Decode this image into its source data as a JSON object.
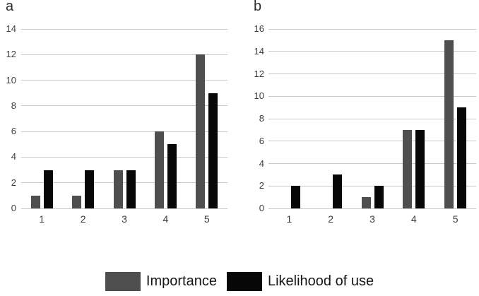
{
  "colors": {
    "importance": "#4f4f4f",
    "likelihood": "#070707",
    "gridline": "#c9c9c9",
    "tick_label": "#3c3c3c",
    "background": "#ffffff"
  },
  "legend": {
    "items": [
      {
        "label": "Importance",
        "color": "#4f4f4f",
        "series_key": "importance"
      },
      {
        "label": "Likelihood of use",
        "color": "#070707",
        "series_key": "likelihood"
      }
    ]
  },
  "chart_data": [
    {
      "type": "bar",
      "panel_label": "a",
      "title": "",
      "xlabel": "",
      "ylabel": "",
      "categories": [
        "1",
        "2",
        "3",
        "4",
        "5"
      ],
      "series": [
        {
          "name": "Importance",
          "color": "#4f4f4f",
          "values": [
            1,
            1,
            3,
            6,
            12
          ]
        },
        {
          "name": "Likelihood of use",
          "color": "#070707",
          "values": [
            3,
            3,
            3,
            5,
            9
          ]
        }
      ],
      "ylim": [
        0,
        14
      ],
      "yticks": [
        0,
        2,
        4,
        6,
        8,
        10,
        12,
        14
      ],
      "grid": true,
      "legend_position": "shared-bottom"
    },
    {
      "type": "bar",
      "panel_label": "b",
      "title": "",
      "xlabel": "",
      "ylabel": "",
      "categories": [
        "1",
        "2",
        "3",
        "4",
        "5"
      ],
      "series": [
        {
          "name": "Importance",
          "color": "#4f4f4f",
          "values": [
            0,
            0,
            1,
            7,
            15
          ]
        },
        {
          "name": "Likelihood of use",
          "color": "#070707",
          "values": [
            2,
            3,
            2,
            7,
            9
          ]
        }
      ],
      "ylim": [
        0,
        16
      ],
      "yticks": [
        0,
        2,
        4,
        6,
        8,
        10,
        12,
        14,
        16
      ],
      "grid": true,
      "legend_position": "shared-bottom"
    }
  ]
}
